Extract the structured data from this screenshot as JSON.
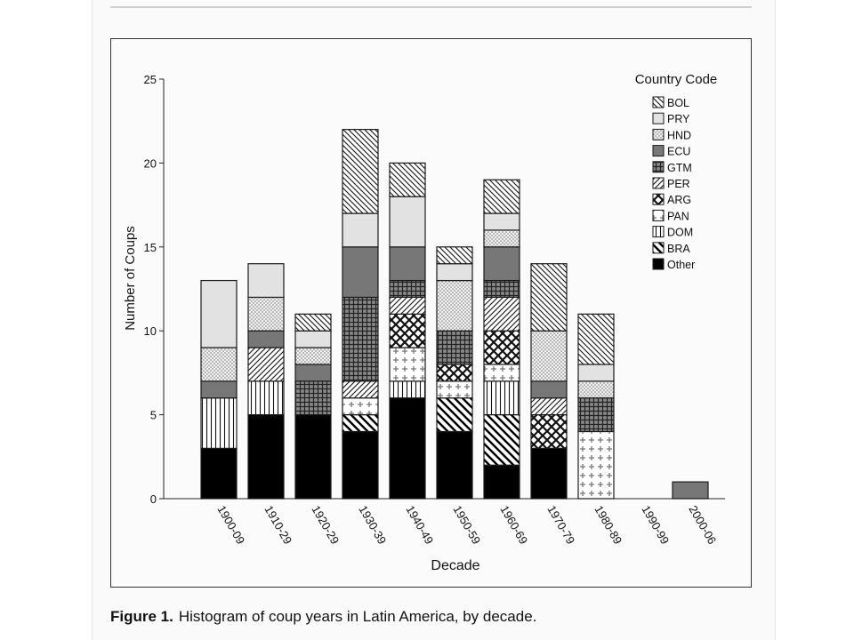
{
  "caption": {
    "label": "Figure 1.",
    "text": "Histogram of coup years in Latin America, by decade."
  },
  "chart_data": {
    "type": "bar",
    "stacked": true,
    "xlabel": "Decade",
    "ylabel": "Number of Coups",
    "ylim": [
      0,
      25
    ],
    "yticks": [
      0,
      5,
      10,
      15,
      20,
      25
    ],
    "grid": false,
    "legend_title": "Country Code",
    "legend_placement": "top-right",
    "categories": [
      "1900-09",
      "1910-29",
      "1920-29",
      "1930-39",
      "1940-49",
      "1950-59",
      "1960-69",
      "1970-79",
      "1980-89",
      "1990-99",
      "2000-06"
    ],
    "series": [
      {
        "name": "Other",
        "pattern": "solid",
        "values": [
          3,
          5,
          5,
          4,
          6,
          4,
          2,
          3,
          0,
          0,
          0
        ]
      },
      {
        "name": "BRA",
        "pattern": "diagonal-back",
        "values": [
          0,
          0,
          0,
          1,
          0,
          2,
          3,
          0,
          0,
          0,
          0
        ]
      },
      {
        "name": "DOM",
        "pattern": "vertical",
        "values": [
          3,
          2,
          0,
          0,
          1,
          0,
          2,
          0,
          0,
          0,
          0
        ]
      },
      {
        "name": "PAN",
        "pattern": "plus",
        "values": [
          0,
          0,
          0,
          1,
          2,
          1,
          1,
          0,
          4,
          0,
          0
        ]
      },
      {
        "name": "ARG",
        "pattern": "crosshatch-diagonal",
        "values": [
          0,
          0,
          0,
          0,
          2,
          1,
          2,
          2,
          0,
          0,
          0
        ]
      },
      {
        "name": "PER",
        "pattern": "diagonal-forward",
        "values": [
          0,
          2,
          0,
          1,
          1,
          0,
          2,
          1,
          0,
          0,
          0
        ]
      },
      {
        "name": "GTM",
        "pattern": "grid",
        "values": [
          0,
          0,
          2,
          5,
          1,
          2,
          1,
          0,
          2,
          0,
          0
        ]
      },
      {
        "name": "ECU",
        "pattern": "dark-gray",
        "values": [
          1,
          1,
          1,
          3,
          2,
          0,
          2,
          1,
          0,
          0,
          1
        ]
      },
      {
        "name": "HND",
        "pattern": "dots",
        "values": [
          2,
          2,
          1,
          0,
          0,
          3,
          1,
          3,
          1,
          0,
          0
        ]
      },
      {
        "name": "PRY",
        "pattern": "light-gray",
        "values": [
          4,
          2,
          1,
          2,
          3,
          1,
          1,
          0,
          1,
          0,
          0
        ]
      },
      {
        "name": "BOL",
        "pattern": "diagonal-back-dense",
        "values": [
          0,
          0,
          1,
          5,
          2,
          1,
          2,
          4,
          3,
          0,
          0
        ]
      }
    ],
    "colors": {
      "outline": "#1a1a1a",
      "dark_gray": "#777777",
      "light_gray": "#e2e2e2",
      "solid": "#000000"
    }
  }
}
